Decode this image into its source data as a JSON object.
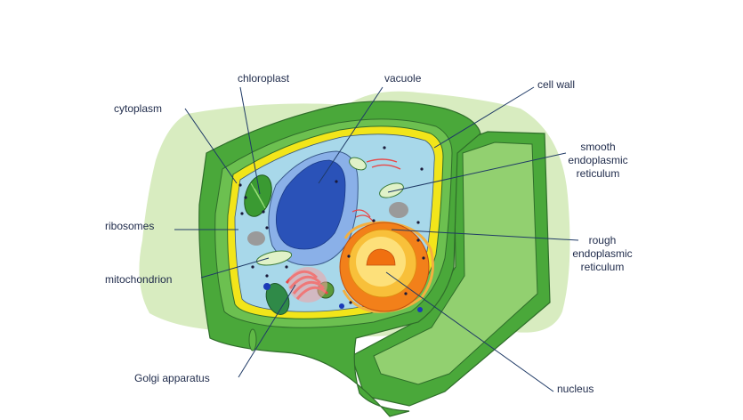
{
  "diagram": {
    "labels": {
      "chloroplast": "chloroplast",
      "vacuole": "vacuole",
      "cell_wall": "cell wall",
      "cytoplasm": "cytoplasm",
      "smooth_er": "smooth\nendoplasmic\nreticulum",
      "ribosomes": "ribosomes",
      "rough_er": "rough\nendoplasmic\nreticulum",
      "mitochondrion": "mitochondrion",
      "golgi": "Golgi apparatus",
      "nucleus": "nucleus"
    },
    "colors": {
      "background_blob": "#d8ecc0",
      "cell_wall_dark": "#3f9a35",
      "cell_wall_mid": "#5fb845",
      "cell_wall_light": "#8fd06e",
      "membrane": "#f2e51a",
      "cytoplasm": "#a8d8ea",
      "vacuole_outer": "#8ab0e8",
      "vacuole_inner": "#2a52b8",
      "nucleus_outer": "#f2801a",
      "nucleus_inner": "#f8c03a",
      "nucleolus": "#f07010",
      "golgi": "#e84848",
      "chloroplast": "#3a9a32",
      "leader_line": "#1f3a66"
    }
  }
}
